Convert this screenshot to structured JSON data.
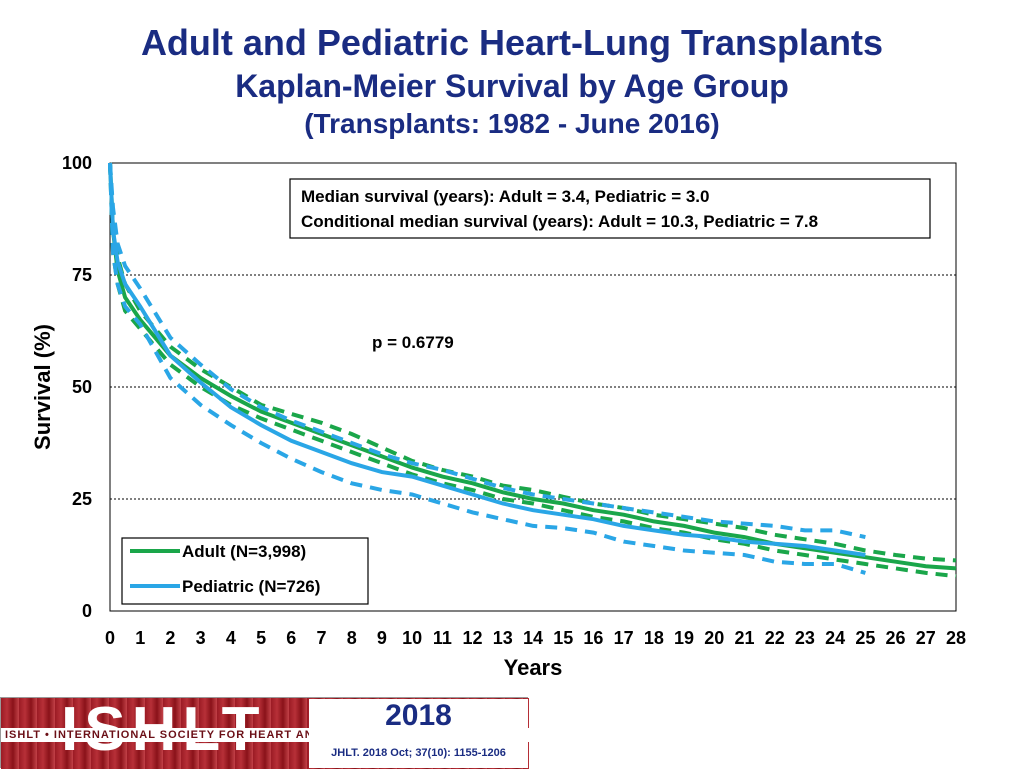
{
  "chart_data": {
    "type": "line",
    "title": "Adult and Pediatric Heart-Lung Transplants",
    "subtitle": "Kaplan-Meier Survival by Age Group",
    "subtitle2": "(Transplants: 1982 - June 2016)",
    "xlabel": "Years",
    "ylabel": "Survival (%)",
    "xlim": [
      0,
      28
    ],
    "ylim": [
      0,
      100
    ],
    "x_ticks": [
      "0",
      "1",
      "2",
      "3",
      "4",
      "5",
      "6",
      "7",
      "8",
      "9",
      "10",
      "11",
      "12",
      "13",
      "14",
      "15",
      "16",
      "17",
      "18",
      "19",
      "20",
      "21",
      "22",
      "23",
      "24",
      "25",
      "26",
      "27",
      "28"
    ],
    "y_ticks": [
      "0",
      "25",
      "50",
      "75",
      "100"
    ],
    "grid": "horizontal dotted",
    "legend_position": "bottom-left",
    "series": [
      {
        "name": "Adult (N=3,998)",
        "color": "#1aa64a",
        "x": [
          0,
          0.1,
          0.25,
          0.5,
          1,
          2,
          3,
          4,
          5,
          6,
          7,
          8,
          9,
          10,
          11,
          12,
          13,
          14,
          15,
          16,
          17,
          18,
          19,
          20,
          21,
          22,
          23,
          24,
          25,
          26,
          27,
          28
        ],
        "values": [
          100,
          85,
          76,
          70,
          65,
          57,
          52,
          48,
          44.5,
          42,
          39.5,
          37,
          34.5,
          32,
          30,
          28.5,
          26.5,
          25,
          24,
          22.5,
          21.5,
          20,
          19,
          17.5,
          16.5,
          15,
          14,
          13,
          12,
          11,
          10,
          9.5
        ],
        "ci_lower": [
          100,
          80,
          73,
          67,
          63,
          55,
          50,
          46,
          43,
          40.5,
          38,
          35.5,
          33,
          30.5,
          28.5,
          27,
          25,
          24,
          22.5,
          21,
          20,
          18.5,
          17.5,
          16,
          15,
          13.5,
          12.5,
          11.5,
          10.5,
          9.5,
          8.5,
          7.8
        ],
        "ci_upper": [
          100,
          88,
          79,
          73,
          67,
          59,
          54,
          50,
          46,
          44,
          42,
          39.5,
          36.5,
          33.5,
          31.5,
          30,
          28,
          27,
          25.5,
          24,
          23,
          21.5,
          20.5,
          19.5,
          18.5,
          17,
          16,
          15,
          13.5,
          12.5,
          11.7,
          11.3
        ]
      },
      {
        "name": "Pediatric (N=726)",
        "color": "#2aa6e6",
        "x": [
          0,
          0.1,
          0.25,
          0.5,
          1,
          2,
          3,
          4,
          5,
          6,
          7,
          8,
          9,
          10,
          11,
          12,
          13,
          14,
          15,
          16,
          17,
          18,
          19,
          20,
          21,
          22,
          23,
          24,
          25
        ],
        "values": [
          100,
          85,
          78,
          73,
          68,
          57,
          51,
          45.5,
          41.5,
          38,
          35.5,
          33,
          31,
          30,
          28,
          26,
          24,
          22.5,
          21.5,
          20.5,
          19,
          18,
          17,
          16.5,
          15.5,
          15,
          14.5,
          13.5,
          12.5
        ],
        "ci_lower": [
          100,
          80,
          73,
          68,
          64,
          52,
          46,
          41.5,
          37.5,
          34,
          31,
          28.5,
          27,
          26,
          24,
          22,
          20.5,
          19,
          18.5,
          17.5,
          15.5,
          14.5,
          13.5,
          13,
          12.5,
          11,
          10.5,
          10.5,
          8.5
        ],
        "ci_upper": [
          100,
          90,
          82,
          77,
          72,
          61,
          55,
          49.5,
          45.5,
          42.5,
          40,
          37.5,
          35,
          33,
          31.5,
          29.5,
          27.5,
          26,
          25,
          24,
          23,
          22,
          21,
          20,
          19.5,
          19,
          18,
          18,
          16.5
        ]
      }
    ],
    "annotations": {
      "median_line1": "Median survival (years): Adult = 3.4, Pediatric = 3.0",
      "median_line2": "Conditional median survival (years): Adult = 10.3, Pediatric = 7.8",
      "p_value": "p = 0.6779"
    }
  },
  "footer": {
    "logo_letters": "ISHLT",
    "logo_tagline": "ISHLT • INTERNATIONAL SOCIETY FOR HEART AND LUNG TRANSPLANTATION",
    "year": "2018",
    "citation": "JHLT. 2018 Oct; 37(10): 1155-1206"
  }
}
